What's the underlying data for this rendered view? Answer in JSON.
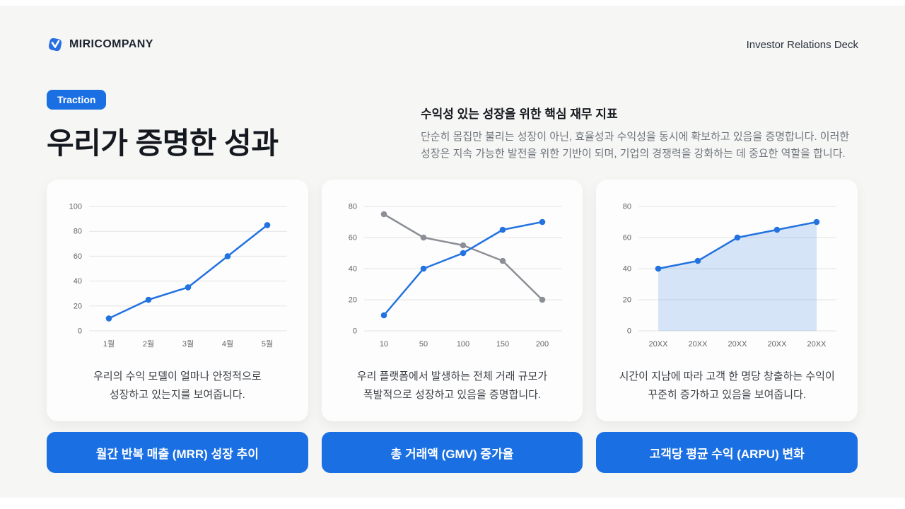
{
  "header": {
    "brand": "MIRICOMPANY",
    "right_label": "Investor Relations Deck"
  },
  "hero": {
    "badge": "Traction",
    "title": "우리가 증명한 성과",
    "subtitle": "수익성 있는 성장을 위한 핵심 재무 지표",
    "description": "단순히 몸집만 불리는 성장이 아닌, 효율성과 수익성을 동시에 확보하고 있음을 증명합니다. 이러한 성장은 지속 가능한 발전을 위한 기반이 되며, 기업의 경쟁력을 강화하는 데 중요한 역할을 합니다."
  },
  "colors": {
    "accent": "#1a6fe3",
    "chart_blue": "#2272e0",
    "chart_gray": "#8c8f95",
    "grid": "#e3e3e1",
    "area_fill": "rgba(34,114,224,0.18)"
  },
  "cards": [
    {
      "description_line1": "우리의 수익 모델이 얼마나 안정적으로",
      "description_line2": "성장하고 있는지를 보여줍니다.",
      "button_label": "월간 반복 매출 (MRR) 성장 추이"
    },
    {
      "description_line1": "우리 플랫폼에서 발생하는 전체 거래 규모가",
      "description_line2": "폭발적으로 성장하고 있음을 증명합니다.",
      "button_label": "총 거래액 (GMV) 증가율"
    },
    {
      "description_line1": "시간이 지남에 따라 고객 한 명당 창출하는 수익이",
      "description_line2": "꾸준히 증가하고 있음을 보여줍니다.",
      "button_label": "고객당 평균 수익 (ARPU) 변화"
    }
  ],
  "chart_data": [
    {
      "type": "line",
      "title": "월간 반복 매출 (MRR) 성장 추이",
      "categories": [
        "1월",
        "2월",
        "3월",
        "4월",
        "5월"
      ],
      "series": [
        {
          "name": "MRR",
          "color": "blue",
          "values": [
            10,
            25,
            35,
            60,
            85
          ]
        }
      ],
      "xlabel": "",
      "ylabel": "",
      "ylim": [
        0,
        100
      ],
      "yticks": [
        0,
        20,
        40,
        60,
        80,
        100
      ],
      "grid": true,
      "legend": "none"
    },
    {
      "type": "line",
      "title": "총 거래액 (GMV) 증가율",
      "categories": [
        "10",
        "50",
        "100",
        "150",
        "200"
      ],
      "series": [
        {
          "name": "declining-gray-series",
          "color": "gray",
          "values": [
            75,
            60,
            55,
            45,
            20
          ]
        },
        {
          "name": "growing-blue-series",
          "color": "blue",
          "values": [
            10,
            40,
            50,
            65,
            70
          ]
        }
      ],
      "xlabel": "",
      "ylabel": "",
      "ylim": [
        0,
        80
      ],
      "yticks": [
        0,
        20,
        40,
        60,
        80
      ],
      "grid": true,
      "legend": "none"
    },
    {
      "type": "area",
      "title": "고객당 평균 수익 (ARPU) 변화",
      "categories": [
        "20XX",
        "20XX",
        "20XX",
        "20XX",
        "20XX"
      ],
      "series": [
        {
          "name": "ARPU",
          "color": "blue",
          "values": [
            40,
            45,
            60,
            65,
            70
          ],
          "fill": true
        }
      ],
      "xlabel": "",
      "ylabel": "",
      "ylim": [
        0,
        80
      ],
      "yticks": [
        0,
        20,
        40,
        60,
        80
      ],
      "grid": true,
      "legend": "none"
    }
  ]
}
